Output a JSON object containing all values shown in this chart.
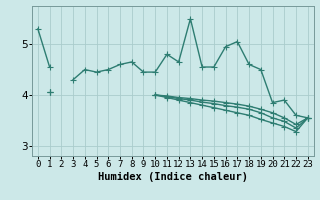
{
  "x": [
    0,
    1,
    2,
    3,
    4,
    5,
    6,
    7,
    8,
    9,
    10,
    11,
    12,
    13,
    14,
    15,
    16,
    17,
    18,
    19,
    20,
    21,
    22,
    23
  ],
  "line1": [
    5.3,
    4.55,
    null,
    4.3,
    4.5,
    4.45,
    4.5,
    4.6,
    4.65,
    4.45,
    4.45,
    4.8,
    4.65,
    5.5,
    4.55,
    4.55,
    4.95,
    5.05,
    4.6,
    4.5,
    3.85,
    3.9,
    3.6,
    3.55
  ],
  "line2": [
    null,
    4.05,
    null,
    null,
    null,
    null,
    null,
    null,
    null,
    null,
    4.0,
    3.98,
    3.95,
    3.93,
    3.9,
    3.88,
    3.85,
    3.82,
    3.78,
    3.72,
    3.65,
    3.55,
    3.42,
    3.55
  ],
  "line3": [
    null,
    4.05,
    null,
    null,
    null,
    null,
    null,
    null,
    null,
    null,
    4.0,
    3.97,
    3.93,
    3.9,
    3.86,
    3.83,
    3.79,
    3.76,
    3.72,
    3.65,
    3.55,
    3.48,
    3.35,
    3.55
  ],
  "line4": [
    null,
    4.05,
    null,
    null,
    null,
    null,
    null,
    null,
    null,
    null,
    4.0,
    3.95,
    3.9,
    3.85,
    3.8,
    3.75,
    3.7,
    3.65,
    3.6,
    3.52,
    3.45,
    3.38,
    3.28,
    3.55
  ],
  "line_color": "#2e7d72",
  "bg_color": "#cce8e8",
  "grid_color": "#aacccc",
  "xlabel": "Humidex (Indice chaleur)",
  "ylim": [
    2.8,
    5.75
  ],
  "xlim": [
    -0.5,
    23.5
  ],
  "yticks": [
    3,
    4,
    5
  ],
  "xticks": [
    0,
    1,
    2,
    3,
    4,
    5,
    6,
    7,
    8,
    9,
    10,
    11,
    12,
    13,
    14,
    15,
    16,
    17,
    18,
    19,
    20,
    21,
    22,
    23
  ],
  "marker": "+",
  "markersize": 4,
  "linewidth": 1.0,
  "tick_fontsize": 6.5,
  "xlabel_fontsize": 7.5
}
